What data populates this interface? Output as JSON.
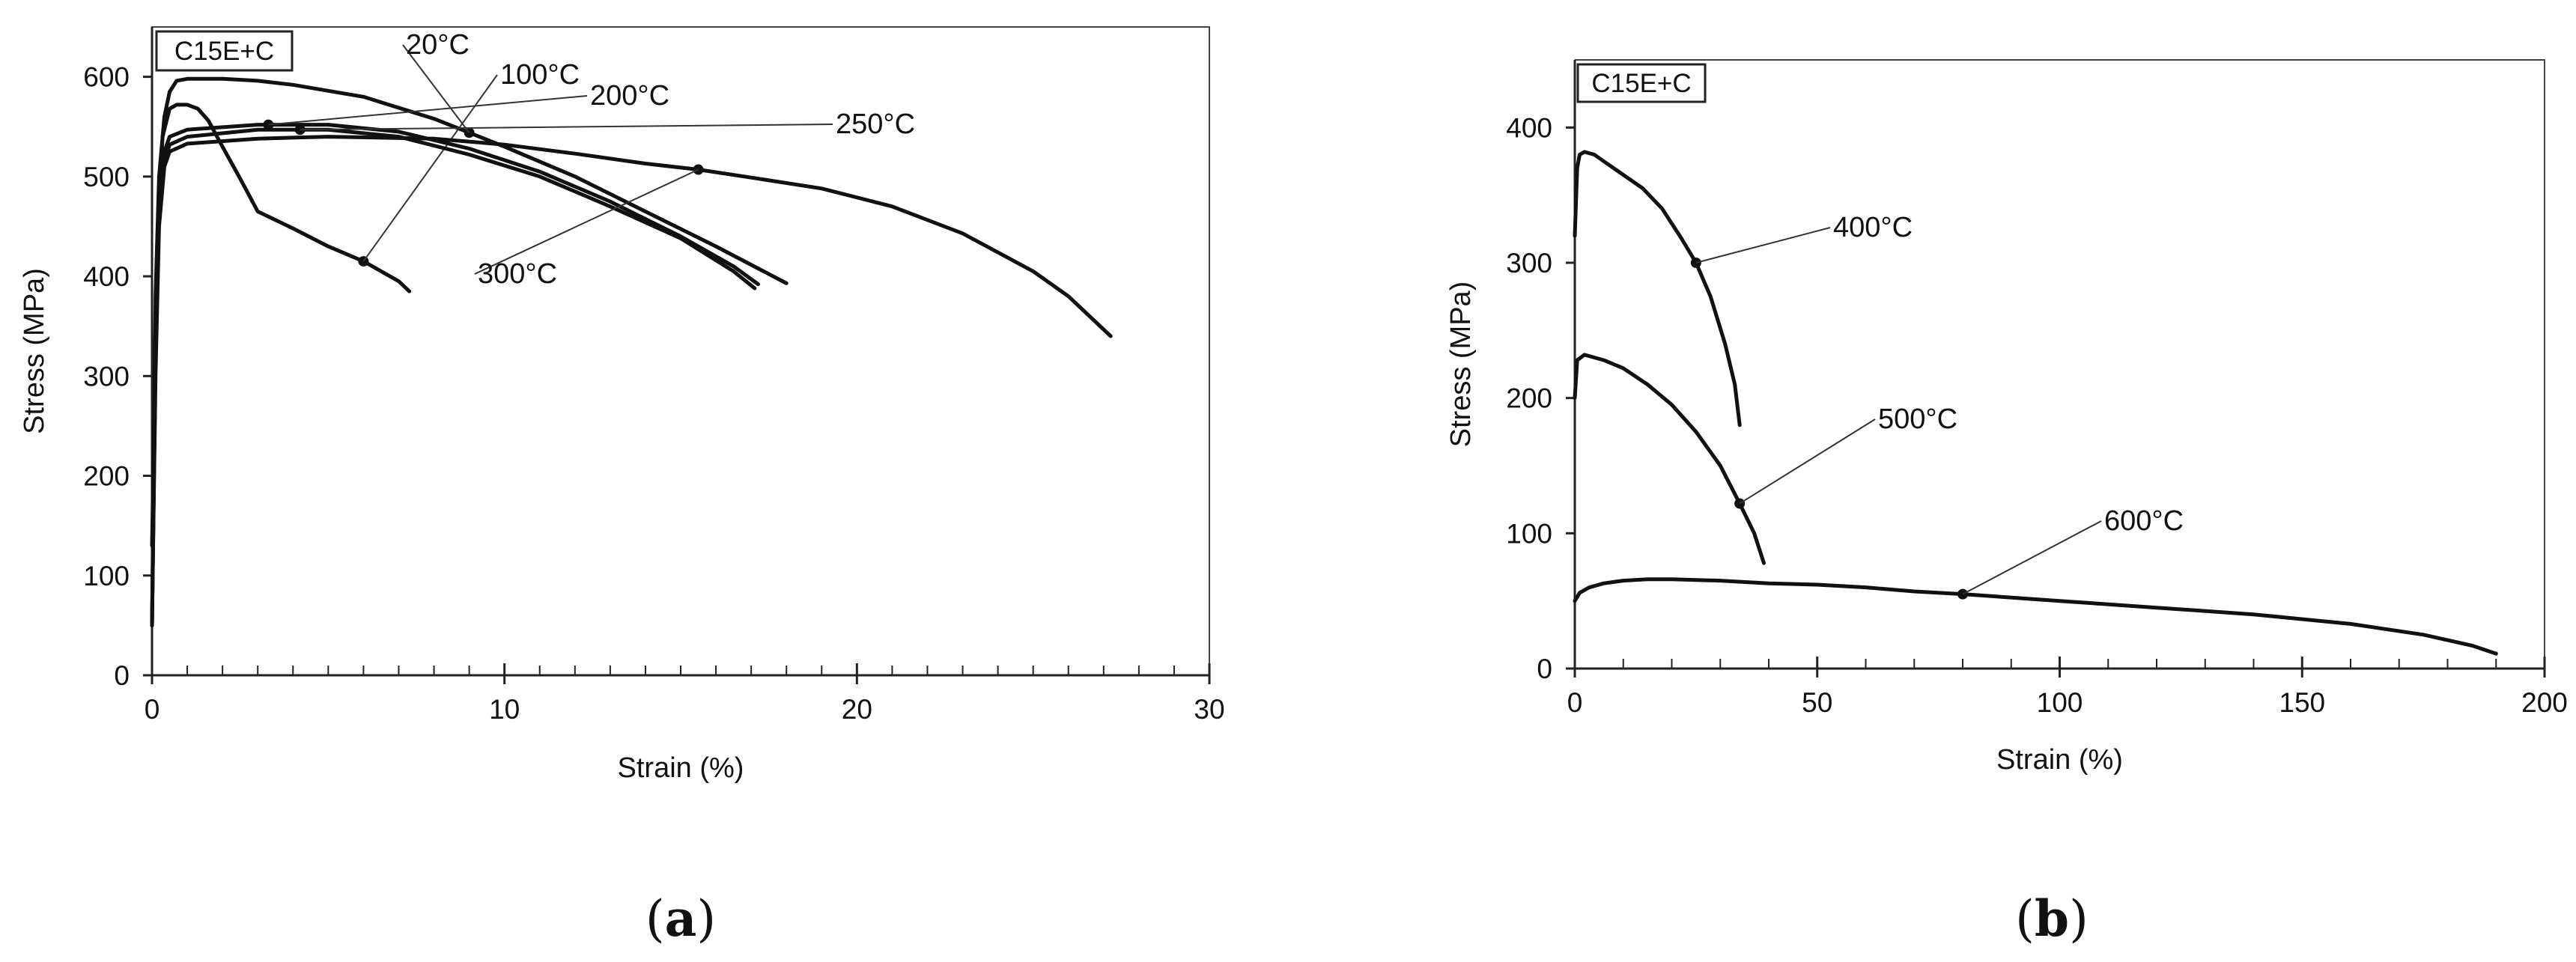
{
  "chart_data": [
    {
      "type": "line",
      "panel_label": "a",
      "tag": "C15E+C",
      "xlabel": "Strain (%)",
      "ylabel": "Stress (MPa)",
      "xlim": [
        0,
        30
      ],
      "ylim": [
        0,
        650
      ],
      "xticks": [
        0,
        10,
        20,
        30
      ],
      "yticks": [
        0,
        100,
        200,
        300,
        400,
        500,
        600
      ],
      "grid": false,
      "series": [
        {
          "name": "20°C",
          "marker_x": 9.0,
          "points": [
            [
              0,
              50
            ],
            [
              0.1,
              380
            ],
            [
              0.2,
              500
            ],
            [
              0.35,
              560
            ],
            [
              0.5,
              585
            ],
            [
              0.7,
              596
            ],
            [
              1,
              598
            ],
            [
              2,
              598
            ],
            [
              3,
              596
            ],
            [
              4,
              592
            ],
            [
              6,
              580
            ],
            [
              8,
              558
            ],
            [
              10,
              530
            ],
            [
              12,
              500
            ],
            [
              14,
              465
            ],
            [
              16,
              430
            ],
            [
              18,
              393
            ]
          ]
        },
        {
          "name": "100°C",
          "marker_x": 6.0,
          "points": [
            [
              0,
              130
            ],
            [
              0.15,
              440
            ],
            [
              0.3,
              540
            ],
            [
              0.5,
              568
            ],
            [
              0.7,
              572
            ],
            [
              1,
              572
            ],
            [
              1.3,
              568
            ],
            [
              1.6,
              556
            ],
            [
              2,
              530
            ],
            [
              2.5,
              498
            ],
            [
              3,
              465
            ],
            [
              4,
              448
            ],
            [
              5,
              430
            ],
            [
              6,
              415
            ],
            [
              7,
              395
            ],
            [
              7.3,
              385
            ]
          ]
        },
        {
          "name": "200°C",
          "marker_x": 3.3,
          "points": [
            [
              0,
              50
            ],
            [
              0.1,
              320
            ],
            [
              0.2,
              470
            ],
            [
              0.35,
              525
            ],
            [
              0.5,
              540
            ],
            [
              1,
              547
            ],
            [
              3,
              552
            ],
            [
              5,
              552
            ],
            [
              7,
              545
            ],
            [
              9,
              528
            ],
            [
              11,
              505
            ],
            [
              13,
              475
            ],
            [
              15,
              440
            ],
            [
              16.5,
              410
            ],
            [
              17.2,
              392
            ]
          ]
        },
        {
          "name": "250°C",
          "marker_x": 4.2,
          "points": [
            [
              0,
              50
            ],
            [
              0.1,
              320
            ],
            [
              0.2,
              460
            ],
            [
              0.35,
              515
            ],
            [
              0.5,
              532
            ],
            [
              1,
              540
            ],
            [
              3,
              547
            ],
            [
              5,
              547
            ],
            [
              7,
              540
            ],
            [
              9,
              522
            ],
            [
              11,
              500
            ],
            [
              13,
              470
            ],
            [
              15,
              438
            ],
            [
              16.5,
              405
            ],
            [
              17.1,
              388
            ]
          ]
        },
        {
          "name": "300°C",
          "marker_x": 15.5,
          "points": [
            [
              0,
              50
            ],
            [
              0.1,
              300
            ],
            [
              0.2,
              450
            ],
            [
              0.35,
              510
            ],
            [
              0.5,
              525
            ],
            [
              1,
              533
            ],
            [
              3,
              538
            ],
            [
              5,
              540
            ],
            [
              8,
              538
            ],
            [
              10,
              532
            ],
            [
              12,
              523
            ],
            [
              14,
              513
            ],
            [
              15.5,
              507
            ],
            [
              17,
              499
            ],
            [
              19,
              488
            ],
            [
              21,
              470
            ],
            [
              23,
              443
            ],
            [
              25,
              405
            ],
            [
              26,
              380
            ],
            [
              27.2,
              340
            ]
          ]
        }
      ]
    },
    {
      "type": "line",
      "panel_label": "b",
      "tag": "C15E+C",
      "xlabel": "Strain (%)",
      "ylabel": "Stress (MPa)",
      "xlim": [
        0,
        200
      ],
      "ylim": [
        0,
        450
      ],
      "xticks": [
        0,
        50,
        100,
        150,
        200
      ],
      "yticks": [
        0,
        100,
        200,
        300,
        400
      ],
      "grid": false,
      "series": [
        {
          "name": "400°C",
          "marker_x": 25,
          "points": [
            [
              0,
              320
            ],
            [
              0.5,
              370
            ],
            [
              1,
              380
            ],
            [
              2,
              382
            ],
            [
              4,
              380
            ],
            [
              6,
              375
            ],
            [
              10,
              365
            ],
            [
              14,
              355
            ],
            [
              18,
              340
            ],
            [
              22,
              318
            ],
            [
              25,
              300
            ],
            [
              28,
              275
            ],
            [
              31,
              240
            ],
            [
              33,
              210
            ],
            [
              34,
              180
            ]
          ]
        },
        {
          "name": "500°C",
          "marker_x": 34,
          "points": [
            [
              0,
              200
            ],
            [
              0.5,
              228
            ],
            [
              2,
              232
            ],
            [
              6,
              228
            ],
            [
              10,
              222
            ],
            [
              15,
              210
            ],
            [
              20,
              195
            ],
            [
              25,
              175
            ],
            [
              30,
              150
            ],
            [
              34,
              122
            ],
            [
              37,
              100
            ],
            [
              39,
              78
            ]
          ]
        },
        {
          "name": "600°C",
          "marker_x": 80,
          "points": [
            [
              0,
              50
            ],
            [
              1,
              56
            ],
            [
              3,
              60
            ],
            [
              6,
              63
            ],
            [
              10,
              65
            ],
            [
              15,
              66
            ],
            [
              20,
              66
            ],
            [
              30,
              65
            ],
            [
              40,
              63
            ],
            [
              50,
              62
            ],
            [
              60,
              60
            ],
            [
              70,
              57
            ],
            [
              80,
              55
            ],
            [
              100,
              50
            ],
            [
              120,
              45
            ],
            [
              140,
              40
            ],
            [
              160,
              33
            ],
            [
              175,
              25
            ],
            [
              185,
              17
            ],
            [
              190,
              11
            ]
          ]
        }
      ]
    }
  ]
}
